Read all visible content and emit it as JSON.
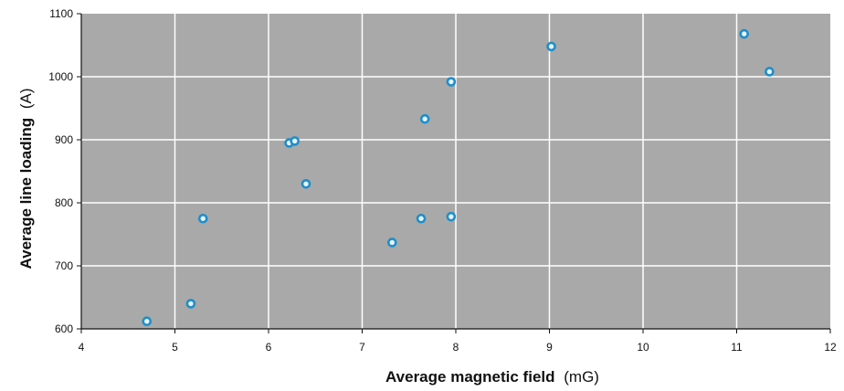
{
  "chart_data": {
    "type": "scatter",
    "title": "",
    "xlabel": "Average magnetic field",
    "xlabel_unit": "(mG)",
    "ylabel": "Average line loading",
    "ylabel_unit": "(A)",
    "xlim": [
      4,
      12
    ],
    "ylim": [
      600,
      1100
    ],
    "x_ticks": [
      "4",
      "5",
      "6",
      "7",
      "8",
      "9",
      "10",
      "11",
      "12"
    ],
    "y_ticks": [
      "600",
      "700",
      "800",
      "900",
      "1000",
      "1100"
    ],
    "grid": true,
    "legend": "none",
    "colors": {
      "plot_background": "#a9a9a9",
      "grid": "#ffffff",
      "marker": "#1f8fc8",
      "axis": "#111111"
    },
    "series": [
      {
        "x": [
          4.7,
          5.17,
          5.3,
          6.22,
          6.28,
          6.4,
          7.32,
          7.63,
          7.67,
          7.95,
          7.95,
          9.02,
          11.08,
          11.35
        ],
        "y": [
          612,
          640,
          775,
          895,
          898,
          830,
          737,
          775,
          933,
          778,
          992,
          1048,
          1068,
          1008
        ]
      }
    ]
  }
}
